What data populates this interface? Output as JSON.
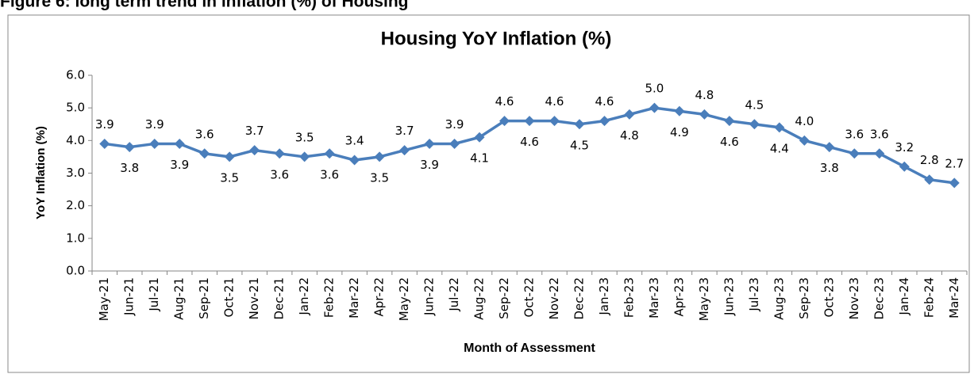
{
  "caption": "Figure 6: long term trend in inflation (%) of Housing",
  "chart_data": {
    "type": "line",
    "title": "Housing YoY Inflation (%)",
    "x_label": "Month of Assessment",
    "y_label": "YoY Inflation (%)",
    "categories": [
      "May-21",
      "Jun-21",
      "Jul-21",
      "Aug-21",
      "Sep-21",
      "Oct-21",
      "Nov-21",
      "Dec-21",
      "Jan-22",
      "Feb-22",
      "Mar-22",
      "Apr-22",
      "May-22",
      "Jun-22",
      "Jul-22",
      "Aug-22",
      "Sep-22",
      "Oct-22",
      "Nov-22",
      "Dec-22",
      "Jan-23",
      "Feb-23",
      "Mar-23",
      "Apr-23",
      "May-23",
      "Jun-23",
      "Jul-23",
      "Aug-23",
      "Sep-23",
      "Oct-23",
      "Nov-23",
      "Dec-23",
      "Jan-24",
      "Feb-24",
      "Mar-24"
    ],
    "values": [
      3.9,
      3.8,
      3.9,
      3.9,
      3.6,
      3.5,
      3.7,
      3.6,
      3.5,
      3.6,
      3.4,
      3.5,
      3.7,
      3.9,
      3.9,
      4.1,
      4.6,
      4.6,
      4.6,
      4.5,
      4.6,
      4.8,
      5.0,
      4.9,
      4.8,
      4.6,
      4.5,
      4.4,
      4.0,
      3.8,
      3.6,
      3.6,
      3.2,
      2.8,
      2.7
    ],
    "value_labels": [
      "3.9",
      "3.8",
      "3.9",
      "3.9",
      "3.6",
      "3.5",
      "3.7",
      "3.6",
      "3.5",
      "3.6",
      "3.4",
      "3.5",
      "3.7",
      "3.9",
      "3.9",
      "4.1",
      "4.6",
      "4.6",
      "4.6",
      "4.5",
      "4.6",
      "4.8",
      "5.0",
      "4.9",
      "4.8",
      "4.6",
      "4.5",
      "4.4",
      "4.0",
      "3.8",
      "3.6",
      "3.6",
      "3.2",
      "2.8",
      "2.7"
    ],
    "color": "#4a7ebb",
    "ylim": [
      0,
      6
    ],
    "yticks": [
      {
        "value": 0,
        "label": "0.0"
      },
      {
        "value": 1,
        "label": "1.0"
      },
      {
        "value": 2,
        "label": "2.0"
      },
      {
        "value": 3,
        "label": "3.0"
      },
      {
        "value": 4,
        "label": "4.0"
      },
      {
        "value": 5,
        "label": "5.0"
      },
      {
        "value": 6,
        "label": "6.0"
      }
    ],
    "grid": false
  }
}
